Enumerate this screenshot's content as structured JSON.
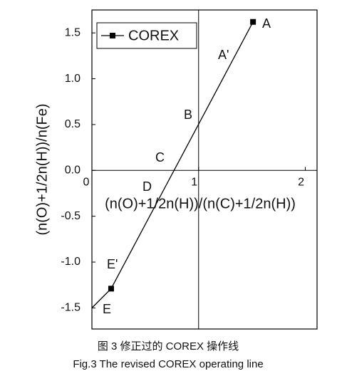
{
  "chart_data": {
    "type": "line",
    "x_label": "(n(O)+1/2n(H))/(n(C)+1/2n(H))",
    "y_label": "(n(O)+1/2n(H))/n(Fe)",
    "x": [
      0,
      0.18,
      1.51
    ],
    "series": [
      {
        "name": "COREX",
        "color": "#000000",
        "values": [
          -1.5,
          -1.29,
          1.62
        ],
        "marker_indices": [
          1,
          2
        ]
      }
    ],
    "xlim": [
      0,
      2.11
    ],
    "ylim": [
      -1.73,
      1.75
    ],
    "xticks": [
      0,
      1,
      2
    ],
    "yticks": [
      {
        "value": -1.5,
        "label": "-1.5"
      },
      {
        "value": -1.0,
        "label": "-1.0"
      },
      {
        "value": -0.5,
        "label": "-0.5"
      },
      {
        "value": 0.0,
        "label": "0.0"
      },
      {
        "value": 0.5,
        "label": "0.5"
      },
      {
        "value": 1.0,
        "label": "1.0"
      },
      {
        "value": 1.5,
        "label": "1.5"
      }
    ],
    "cross_lines": {
      "x": 1,
      "y": 0
    },
    "legend": "top-left",
    "annotations": [
      "A",
      "A'",
      "B",
      "C",
      "D",
      "E'",
      "E"
    ],
    "captions": [
      "图 3 修正过的 COREX 操作线",
      "Fig.3 The revised COREX operating line"
    ]
  }
}
